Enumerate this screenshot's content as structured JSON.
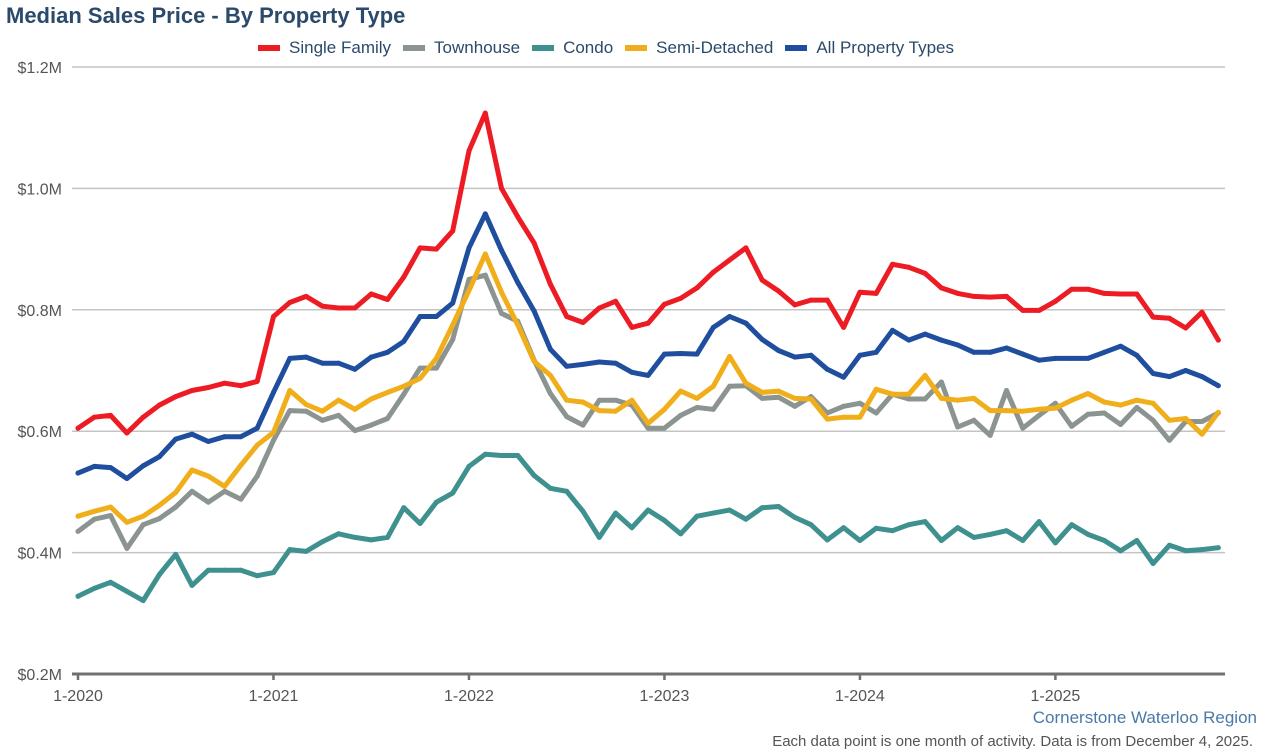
{
  "chart_data": {
    "type": "line",
    "title": "Median Sales Price - By Property Type",
    "xlabel": "",
    "ylabel": "",
    "ylim": [
      200000,
      1200000
    ],
    "yticks": [
      200000,
      400000,
      600000,
      800000,
      1000000,
      1200000
    ],
    "ytick_labels": [
      "$0.2M",
      "$0.4M",
      "$0.6M",
      "$0.8M",
      "$1.0M",
      "$1.2M"
    ],
    "x_start": "1-2020",
    "x_step": "1 month",
    "x_count": 71,
    "xtick_labels": [
      {
        "index": 0,
        "label": "1-2020"
      },
      {
        "index": 12,
        "label": "1-2021"
      },
      {
        "index": 24,
        "label": "1-2022"
      },
      {
        "index": 36,
        "label": "1-2023"
      },
      {
        "index": 48,
        "label": "1-2024"
      },
      {
        "index": 60,
        "label": "1-2025"
      }
    ],
    "grid": true,
    "legend_position": "top-center",
    "series": [
      {
        "name": "Single Family",
        "color": "#ed1c24",
        "values": [
          605000,
          623000,
          626000,
          597000,
          623000,
          643000,
          657000,
          667000,
          672000,
          679000,
          675000,
          682000,
          789000,
          812000,
          822000,
          806000,
          803000,
          803000,
          826000,
          817000,
          854000,
          902000,
          900000,
          930000,
          1062000,
          1124000,
          1000000,
          953000,
          910000,
          842000,
          789000,
          779000,
          803000,
          814000,
          771000,
          778000,
          809000,
          819000,
          836000,
          862000,
          882000,
          902000,
          849000,
          831000,
          808000,
          816000,
          816000,
          771000,
          829000,
          827000,
          875000,
          870000,
          860000,
          836000,
          827000,
          822000,
          821000,
          822000,
          799000,
          799000,
          814000,
          834000,
          834000,
          827000,
          826000,
          826000,
          788000,
          786000,
          770000,
          796000,
          750000
        ]
      },
      {
        "name": "Townhouse",
        "color": "#8c9491",
        "values": [
          435000,
          455000,
          461000,
          407000,
          446000,
          456000,
          475000,
          501000,
          483000,
          501000,
          488000,
          526000,
          585000,
          634000,
          633000,
          618000,
          626000,
          601000,
          610000,
          621000,
          661000,
          704000,
          704000,
          751000,
          850000,
          857000,
          794000,
          781000,
          717000,
          662000,
          624000,
          610000,
          651000,
          651000,
          643000,
          605000,
          605000,
          626000,
          639000,
          636000,
          674000,
          675000,
          654000,
          656000,
          641000,
          657000,
          630000,
          641000,
          646000,
          630000,
          661000,
          653000,
          653000,
          681000,
          607000,
          618000,
          593000,
          667000,
          605000,
          626000,
          646000,
          608000,
          628000,
          630000,
          611000,
          639000,
          618000,
          585000,
          616000,
          616000,
          630000
        ]
      },
      {
        "name": "Condo",
        "color": "#3f918f",
        "values": [
          328000,
          341000,
          351000,
          336000,
          321000,
          364000,
          397000,
          346000,
          371000,
          371000,
          371000,
          362000,
          367000,
          405000,
          402000,
          418000,
          431000,
          425000,
          421000,
          425000,
          474000,
          448000,
          483000,
          498000,
          542000,
          562000,
          560000,
          560000,
          527000,
          506000,
          501000,
          468000,
          425000,
          465000,
          441000,
          470000,
          453000,
          431000,
          460000,
          465000,
          470000,
          455000,
          474000,
          476000,
          458000,
          446000,
          421000,
          441000,
          420000,
          440000,
          436000,
          446000,
          451000,
          420000,
          441000,
          425000,
          430000,
          436000,
          420000,
          451000,
          416000,
          446000,
          430000,
          420000,
          403000,
          420000,
          382000,
          412000,
          403000,
          405000,
          408000
        ]
      },
      {
        "name": "Semi-Detached",
        "color": "#f0ae1a",
        "values": [
          460000,
          468000,
          475000,
          450000,
          460000,
          478000,
          499000,
          536000,
          526000,
          509000,
          544000,
          577000,
          598000,
          667000,
          644000,
          633000,
          651000,
          636000,
          653000,
          664000,
          674000,
          687000,
          720000,
          775000,
          832000,
          892000,
          829000,
          775000,
          715000,
          692000,
          651000,
          648000,
          634000,
          633000,
          651000,
          613000,
          636000,
          666000,
          654000,
          674000,
          723000,
          679000,
          664000,
          666000,
          654000,
          653000,
          620000,
          623000,
          623000,
          669000,
          661000,
          661000,
          692000,
          654000,
          651000,
          654000,
          634000,
          634000,
          633000,
          636000,
          638000,
          651000,
          662000,
          648000,
          643000,
          651000,
          646000,
          618000,
          621000,
          595000,
          631000
        ]
      },
      {
        "name": "All Property Types",
        "color": "#1f4e9e",
        "values": [
          531000,
          542000,
          540000,
          522000,
          543000,
          558000,
          587000,
          595000,
          583000,
          591000,
          591000,
          605000,
          664000,
          720000,
          722000,
          712000,
          712000,
          702000,
          722000,
          730000,
          748000,
          789000,
          789000,
          811000,
          902000,
          958000,
          898000,
          845000,
          798000,
          735000,
          707000,
          710000,
          714000,
          712000,
          697000,
          692000,
          727000,
          728000,
          727000,
          771000,
          789000,
          778000,
          751000,
          733000,
          722000,
          725000,
          702000,
          689000,
          725000,
          730000,
          766000,
          750000,
          760000,
          750000,
          742000,
          730000,
          730000,
          737000,
          727000,
          717000,
          720000,
          720000,
          720000,
          730000,
          740000,
          725000,
          695000,
          690000,
          700000,
          690000,
          675000
        ]
      }
    ]
  },
  "footer": {
    "credit": "Cornerstone Waterloo Region",
    "note": "Each data point is one month of activity. Data is from December 4, 2025."
  }
}
